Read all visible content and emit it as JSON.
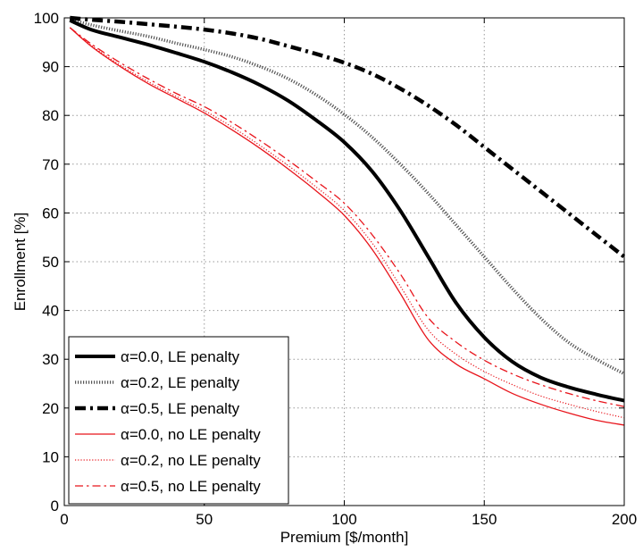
{
  "chart_data": {
    "type": "line",
    "xlabel": "Premium [$/month]",
    "ylabel": "Enrollment [%]",
    "xlim": [
      0,
      200
    ],
    "ylim": [
      0,
      100
    ],
    "xticks": [
      0,
      50,
      100,
      150,
      200
    ],
    "yticks": [
      0,
      10,
      20,
      30,
      40,
      50,
      60,
      70,
      80,
      90,
      100
    ],
    "grid": true,
    "legend_position": "bottom-left",
    "x": [
      2,
      10,
      20,
      30,
      40,
      50,
      60,
      70,
      80,
      90,
      100,
      110,
      120,
      130,
      140,
      150,
      160,
      170,
      180,
      190,
      200
    ],
    "series": [
      {
        "name": "α=0.0, LE penalty",
        "color": "#000000",
        "style": "solid-thick",
        "values": [
          99.5,
          97.5,
          96.0,
          94.5,
          92.8,
          91.0,
          88.8,
          86.2,
          83.0,
          79.0,
          74.5,
          68.5,
          60.5,
          51.0,
          41.5,
          34.5,
          29.5,
          26.3,
          24.3,
          22.8,
          21.5
        ]
      },
      {
        "name": "α=0.2, LE penalty",
        "color": "#555555",
        "style": "dotted-thick",
        "values": [
          99.7,
          98.5,
          97.3,
          96.2,
          94.8,
          93.5,
          92.0,
          90.0,
          87.5,
          84.2,
          80.2,
          75.5,
          70.0,
          64.0,
          57.5,
          51.0,
          44.5,
          38.5,
          33.5,
          30.0,
          27.0
        ]
      },
      {
        "name": "α=0.5, LE penalty",
        "color": "#000000",
        "style": "dashdot-thick",
        "values": [
          100.0,
          99.6,
          99.2,
          98.7,
          98.2,
          97.6,
          96.8,
          95.7,
          94.2,
          92.6,
          90.8,
          88.5,
          85.5,
          82.0,
          78.0,
          73.5,
          69.0,
          64.5,
          60.0,
          55.5,
          51.0
        ]
      },
      {
        "name": "α=0.0, no LE penalty",
        "color": "#e8141b",
        "style": "solid-thin",
        "values": [
          98.0,
          94.0,
          90.0,
          86.5,
          83.5,
          80.5,
          77.0,
          73.2,
          69.0,
          64.5,
          59.5,
          52.5,
          43.5,
          34.0,
          29.0,
          26.0,
          23.0,
          20.8,
          19.0,
          17.5,
          16.5
        ]
      },
      {
        "name": "α=0.2, no LE penalty",
        "color": "#e8141b",
        "style": "dotted-thin",
        "values": [
          98.0,
          94.2,
          90.3,
          86.9,
          83.9,
          81.0,
          77.6,
          73.8,
          69.7,
          65.3,
          60.5,
          53.8,
          45.0,
          36.0,
          31.0,
          27.5,
          24.8,
          22.5,
          20.8,
          19.3,
          18.0
        ]
      },
      {
        "name": "α=0.5, no LE penalty",
        "color": "#e8141b",
        "style": "dashdot-thin",
        "values": [
          98.0,
          94.5,
          90.8,
          87.5,
          84.5,
          81.8,
          78.5,
          74.8,
          70.8,
          66.5,
          62.0,
          55.5,
          47.5,
          38.5,
          33.5,
          29.8,
          27.0,
          24.8,
          23.0,
          21.5,
          20.3
        ]
      }
    ]
  }
}
